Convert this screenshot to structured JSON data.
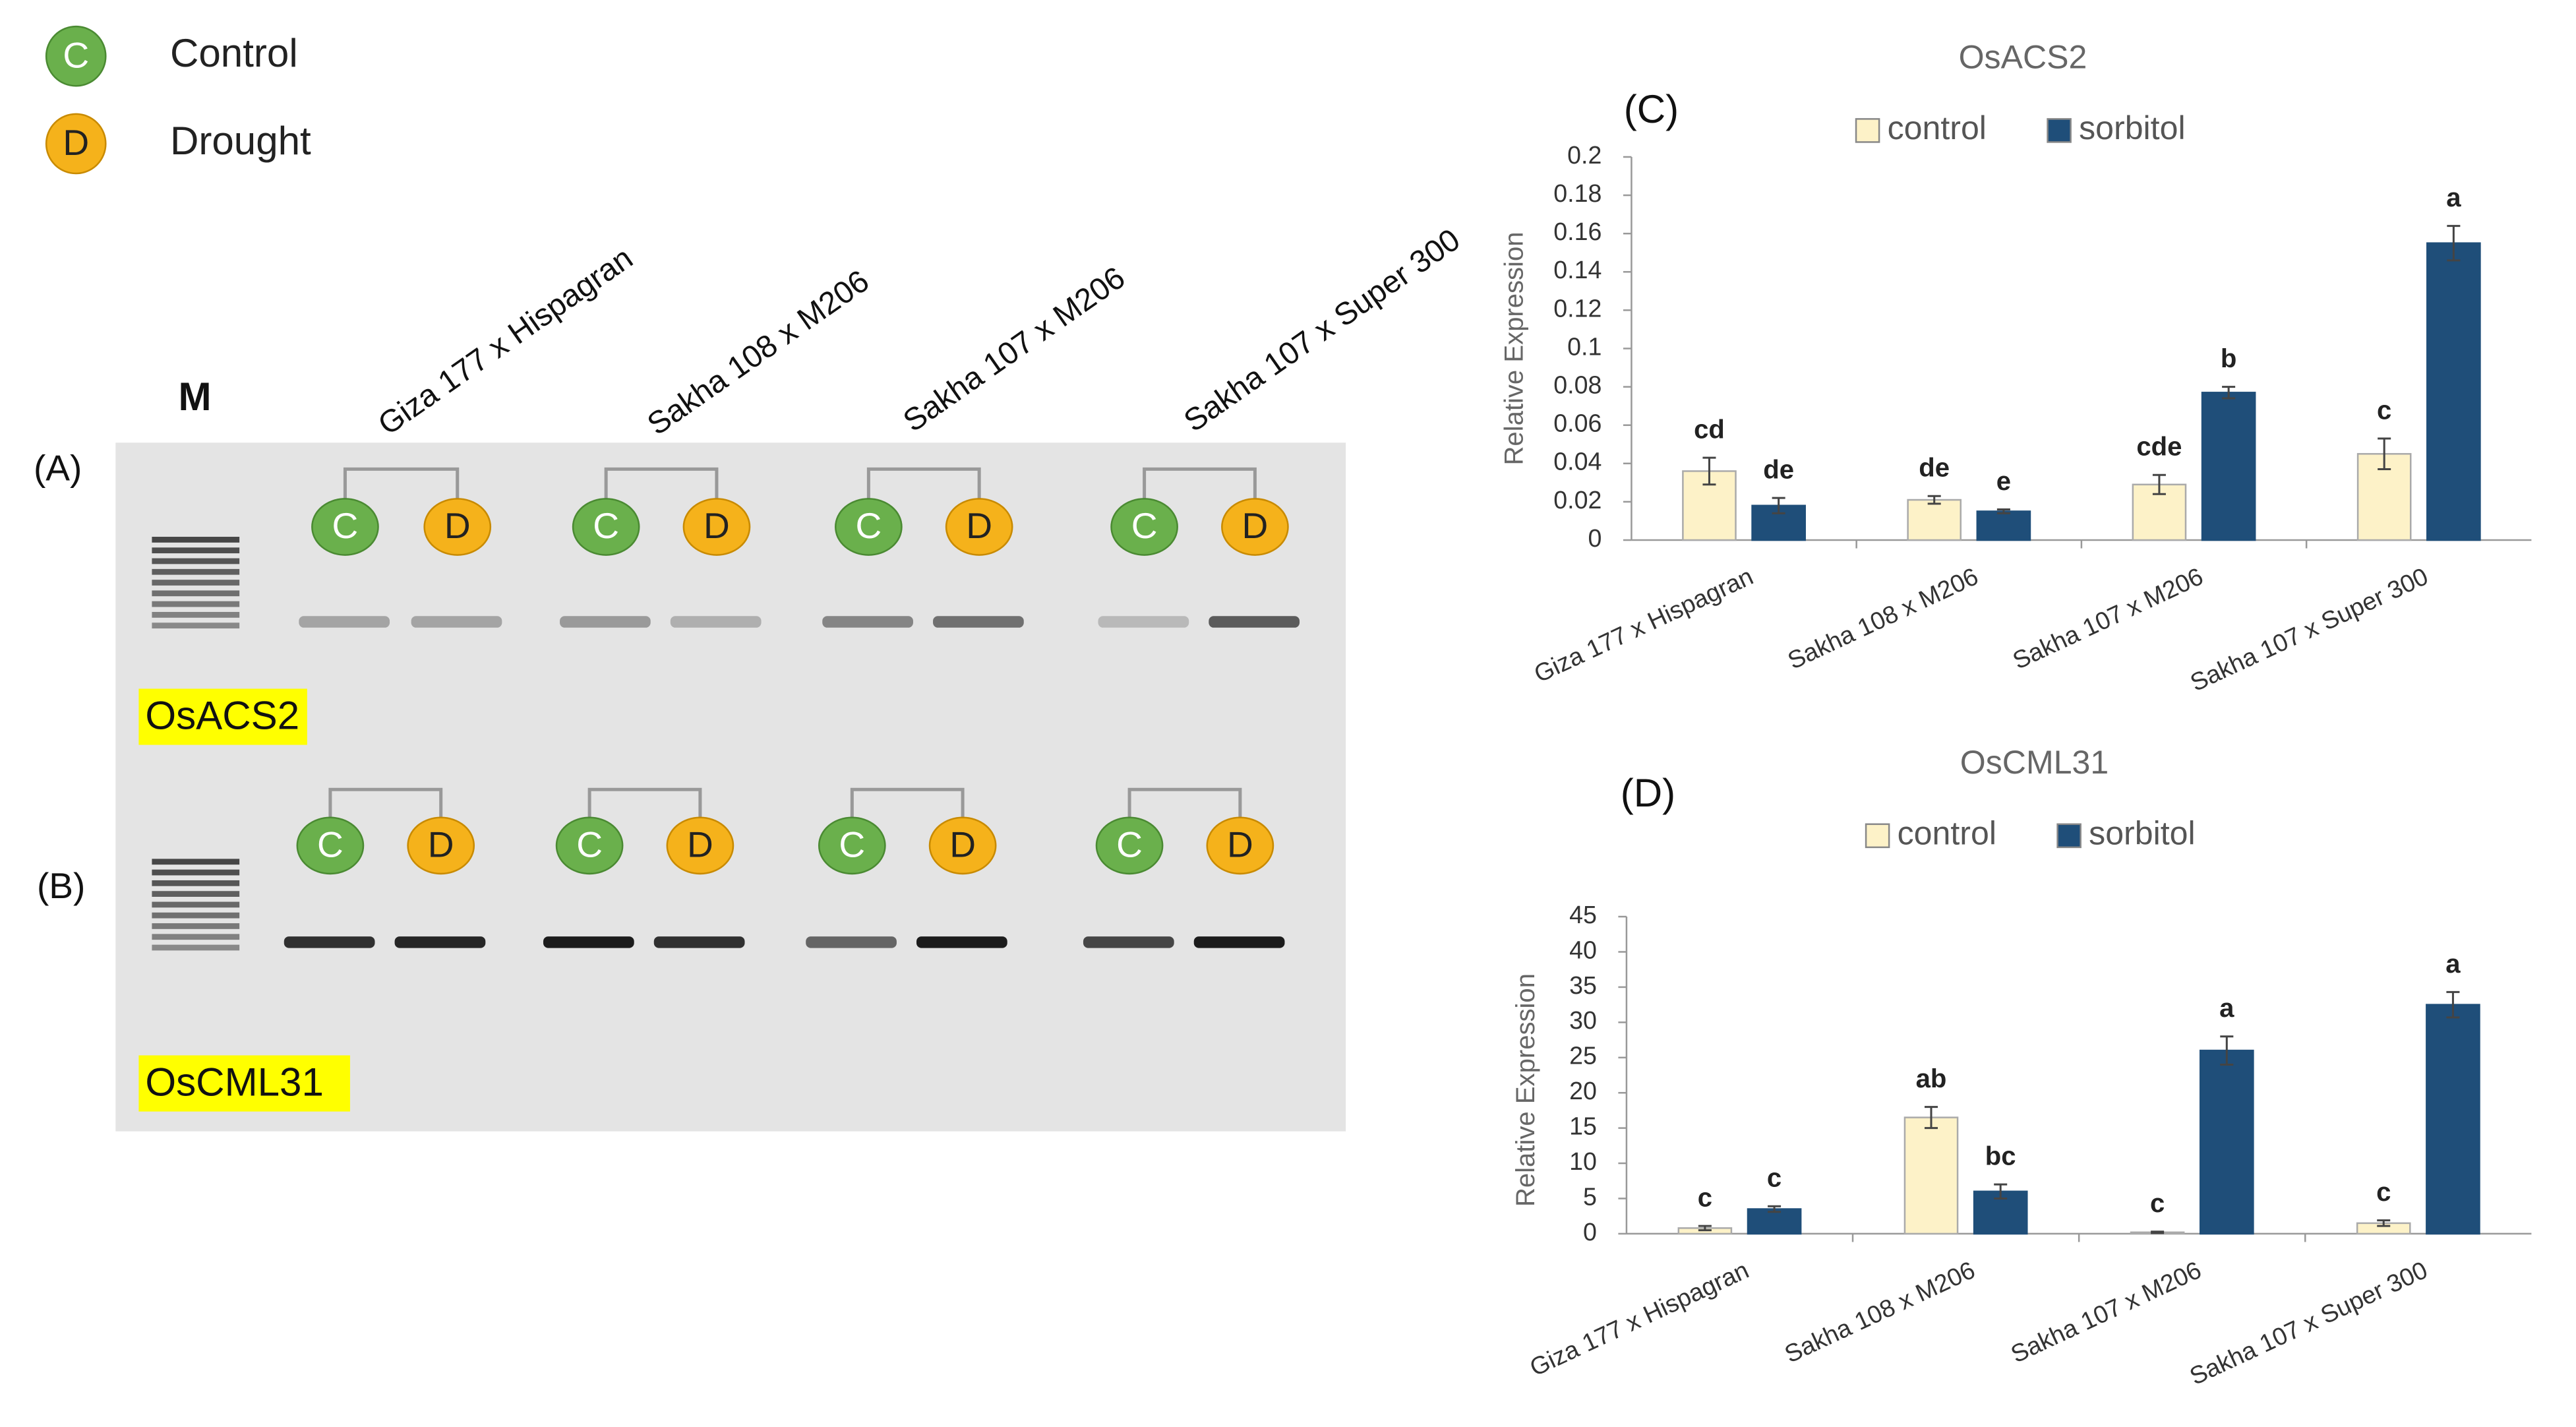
{
  "legend": [
    {
      "symbol": "C",
      "label": "Control"
    },
    {
      "symbol": "D",
      "label": "Drought"
    }
  ],
  "gel": {
    "marker": "M",
    "panels": [
      "(A)",
      "(B)"
    ],
    "lanes": [
      "Giza 177 x Hispagran",
      "Sakha 108 x M206",
      "Sakha 107 x M206",
      "Sakha 107 x Super 300"
    ],
    "genes": [
      "OsACS2",
      "OsCML31"
    ]
  },
  "chart_data": [
    {
      "type": "bar",
      "panel": "(C)",
      "title": "OsACS2",
      "y_label": "Relative Expression",
      "categories": [
        "Giza 177 x Hispagran",
        "Sakha 108 x M206",
        "Sakha 107 x M206",
        "Sakha 107 x Super 300"
      ],
      "series": [
        {
          "name": "control",
          "color": "#fdf2c8",
          "values": [
            0.036,
            0.021,
            0.029,
            0.045
          ],
          "errors": [
            0.007,
            0.002,
            0.005,
            0.008
          ],
          "letters": [
            "cd",
            "de",
            "cde",
            "c"
          ]
        },
        {
          "name": "sorbitol",
          "color": "#1f4e79",
          "values": [
            0.018,
            0.015,
            0.077,
            0.155
          ],
          "errors": [
            0.004,
            0.001,
            0.003,
            0.009
          ],
          "letters": [
            "de",
            "e",
            "b",
            "a"
          ]
        }
      ],
      "ylim": [
        0,
        0.2
      ],
      "yticks": [
        0,
        0.02,
        0.04,
        0.06,
        0.08,
        0.1,
        0.12,
        0.14,
        0.16,
        0.18,
        0.2
      ]
    },
    {
      "type": "bar",
      "panel": "(D)",
      "title": "OsCML31",
      "y_label": "Relative Expression",
      "categories": [
        "Giza 177 x Hispagran",
        "Sakha 108 x M206",
        "Sakha 107 x M206",
        "Sakha 107 x Super 300"
      ],
      "series": [
        {
          "name": "control",
          "color": "#fdf2c8",
          "values": [
            0.8,
            16.5,
            0.2,
            1.5
          ],
          "errors": [
            0.3,
            1.5,
            0.1,
            0.4
          ],
          "letters": [
            "c",
            "ab",
            "c",
            "c"
          ]
        },
        {
          "name": "sorbitol",
          "color": "#1f4e79",
          "values": [
            3.5,
            6,
            26,
            32.5
          ],
          "errors": [
            0.4,
            1,
            2,
            1.8
          ],
          "letters": [
            "c",
            "bc",
            "a",
            "a"
          ]
        }
      ],
      "ylim": [
        0,
        45
      ],
      "yticks": [
        0,
        5,
        10,
        15,
        20,
        25,
        30,
        35,
        40,
        45
      ]
    }
  ]
}
